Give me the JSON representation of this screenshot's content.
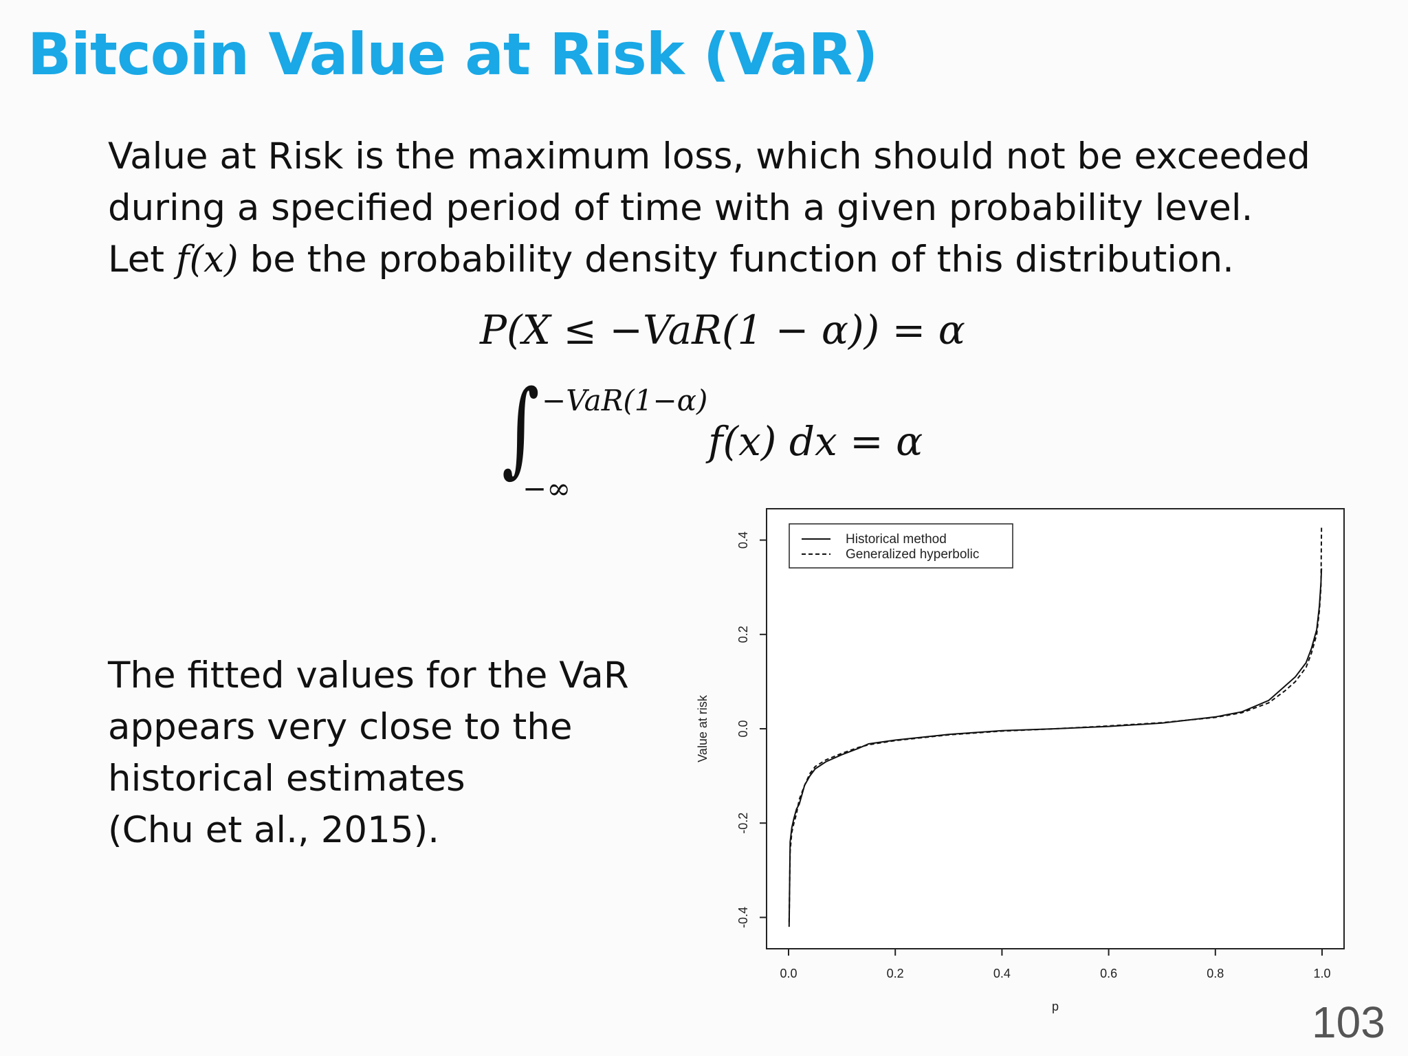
{
  "slide": {
    "title": "Bitcoin Value at Risk (VaR)",
    "intro_lines": [
      "Value at Risk is the maximum loss, which should not be exceeded",
      "during a specified period of time with a given probability level."
    ],
    "intro_line3": {
      "prefix": "Let ",
      "math": "f(x)",
      "suffix": " be the probability density function of this distribution."
    },
    "equation1": "P(X ≤ −VaR(1 − α)) = α",
    "equation2": {
      "integral_sign": "∫",
      "upper_limit": "−VaR(1−α)",
      "lower_limit": "−∞",
      "integrand": "f(x) dx = α"
    },
    "note_lines": [
      "The fitted values for the VaR",
      "appears very close to the",
      "historical estimates",
      "(Chu et al., 2015)."
    ],
    "page_number": "103"
  },
  "chart_data": {
    "type": "line",
    "xlabel": "p",
    "ylabel": "Value at risk",
    "xlim": [
      0,
      1
    ],
    "ylim": [
      -0.43,
      0.43
    ],
    "x_ticks": [
      "0.0",
      "0.2",
      "0.4",
      "0.6",
      "0.8",
      "1.0"
    ],
    "y_ticks": [
      "-0.4",
      "-0.2",
      "0.0",
      "0.2",
      "0.4"
    ],
    "legend_position": "top-left",
    "grid": false,
    "series": [
      {
        "name": "Historical method",
        "style": "solid",
        "color": "#111111",
        "x": [
          0.001,
          0.003,
          0.006,
          0.01,
          0.015,
          0.02,
          0.03,
          0.04,
          0.05,
          0.07,
          0.1,
          0.13,
          0.15,
          0.2,
          0.3,
          0.4,
          0.5,
          0.6,
          0.7,
          0.8,
          0.85,
          0.9,
          0.93,
          0.95,
          0.97,
          0.98,
          0.99,
          0.995,
          0.998,
          0.999
        ],
        "y": [
          -0.42,
          -0.24,
          -0.21,
          -0.19,
          -0.17,
          -0.16,
          -0.12,
          -0.1,
          -0.085,
          -0.07,
          -0.055,
          -0.042,
          -0.032,
          -0.024,
          -0.012,
          -0.004,
          0.0,
          0.005,
          0.012,
          0.025,
          0.036,
          0.06,
          0.09,
          0.11,
          0.14,
          0.17,
          0.21,
          0.26,
          0.31,
          0.34
        ]
      },
      {
        "name": "Generalized hyperbolic",
        "style": "dashed",
        "color": "#111111",
        "x": [
          0.001,
          0.003,
          0.006,
          0.01,
          0.015,
          0.02,
          0.03,
          0.04,
          0.05,
          0.07,
          0.1,
          0.13,
          0.15,
          0.2,
          0.3,
          0.4,
          0.5,
          0.6,
          0.7,
          0.8,
          0.85,
          0.9,
          0.93,
          0.95,
          0.97,
          0.98,
          0.99,
          0.995,
          0.998,
          0.999
        ],
        "y": [
          -0.41,
          -0.26,
          -0.22,
          -0.2,
          -0.18,
          -0.15,
          -0.12,
          -0.095,
          -0.08,
          -0.066,
          -0.052,
          -0.04,
          -0.034,
          -0.025,
          -0.013,
          -0.005,
          0.0,
          0.006,
          0.013,
          0.024,
          0.034,
          0.055,
          0.08,
          0.1,
          0.13,
          0.16,
          0.2,
          0.25,
          0.3,
          0.43
        ]
      }
    ]
  }
}
